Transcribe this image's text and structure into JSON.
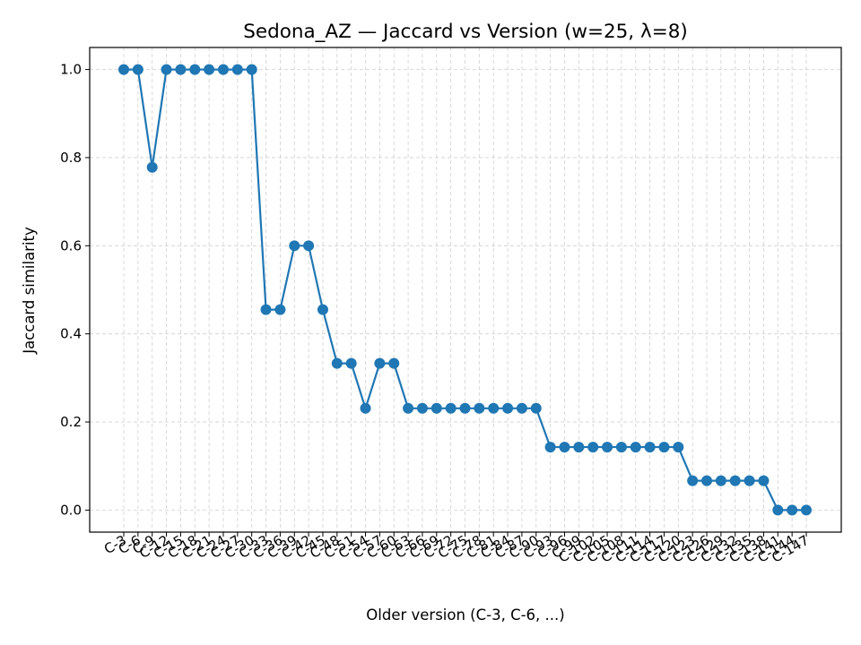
{
  "chart_data": {
    "type": "line",
    "title": "Sedona_AZ — Jaccard vs Version (w=25, λ=8)",
    "xlabel": "Older version (C-3, C-6, ...)",
    "ylabel": "Jaccard similarity",
    "ylim": [
      -0.05,
      1.05
    ],
    "yticks": [
      0.0,
      0.2,
      0.4,
      0.6,
      0.8,
      1.0
    ],
    "ytick_labels": [
      "0.0",
      "0.2",
      "0.4",
      "0.6",
      "0.8",
      "1.0"
    ],
    "grid": true,
    "categories": [
      "C-3",
      "C-6",
      "C-9",
      "C-12",
      "C-15",
      "C-18",
      "C-21",
      "C-24",
      "C-27",
      "C-30",
      "C-33",
      "C-36",
      "C-39",
      "C-42",
      "C-45",
      "C-48",
      "C-51",
      "C-54",
      "C-57",
      "C-60",
      "C-63",
      "C-66",
      "C-69",
      "C-72",
      "C-75",
      "C-78",
      "C-81",
      "C-84",
      "C-87",
      "C-90",
      "C-93",
      "C-96",
      "C-99",
      "C-102",
      "C-105",
      "C-108",
      "C-111",
      "C-114",
      "C-117",
      "C-120",
      "C-123",
      "C-126",
      "C-129",
      "C-132",
      "C-135",
      "C-138",
      "C-141",
      "C-144",
      "C-147"
    ],
    "series": [
      {
        "color": "#1f77b4",
        "values": [
          1.0,
          1.0,
          0.778,
          1.0,
          1.0,
          1.0,
          1.0,
          1.0,
          1.0,
          1.0,
          0.455,
          0.455,
          0.6,
          0.6,
          0.455,
          0.333,
          0.333,
          0.231,
          0.333,
          0.333,
          0.231,
          0.231,
          0.231,
          0.231,
          0.231,
          0.231,
          0.231,
          0.231,
          0.231,
          0.231,
          0.143,
          0.143,
          0.143,
          0.143,
          0.143,
          0.143,
          0.143,
          0.143,
          0.143,
          0.143,
          0.0667,
          0.0667,
          0.0667,
          0.0667,
          0.0667,
          0.0667,
          0.0,
          0.0,
          0.0
        ]
      }
    ]
  }
}
